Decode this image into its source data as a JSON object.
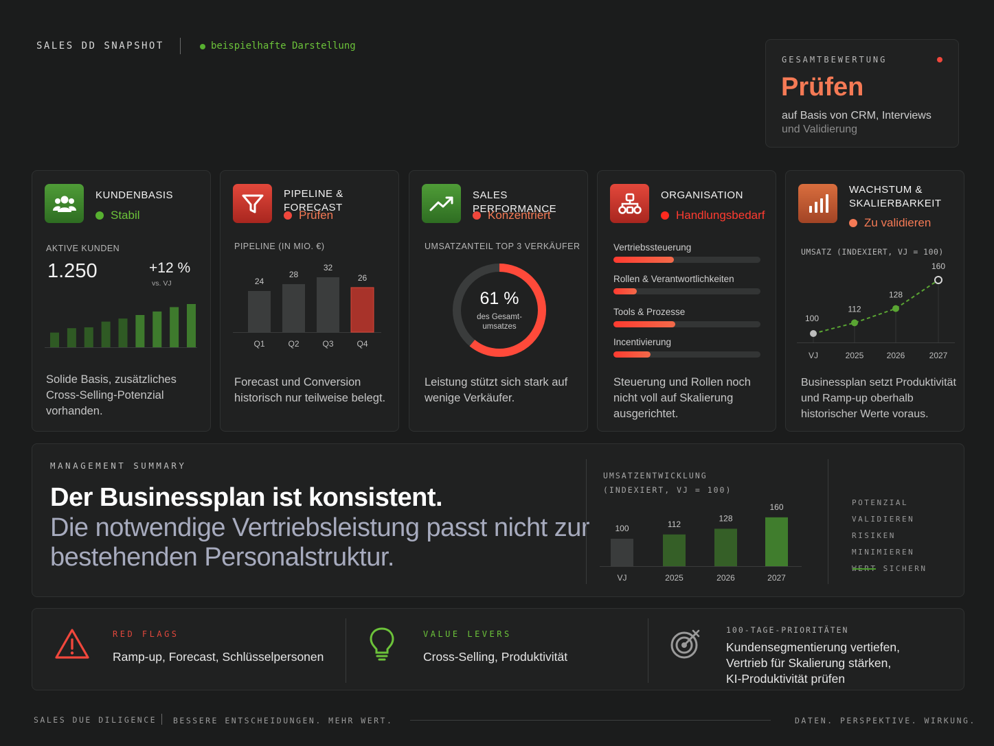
{
  "header": {
    "title": "SALES DD SNAPSHOT",
    "subtitle": "beispielhafte Darstellung"
  },
  "overall": {
    "label": "GESAMTBEWERTUNG",
    "value": "Prüfen",
    "desc_line1": "auf Basis von CRM, Interviews",
    "desc_line2": "und Validierung"
  },
  "colors": {
    "green": "#6cc33a",
    "orange": "#f57a55",
    "red": "#ff3b30",
    "bar_gray": "#3a3c3c",
    "bar_green": "#3f7a2c"
  },
  "cards": {
    "kundenbasis": {
      "icon": "users-icon",
      "title": "KUNDENBASIS",
      "status": "Stabil",
      "metric_label": "AKTIVE KUNDEN",
      "value": "1.250",
      "change": "+12 %",
      "change_note": "vs. VJ",
      "trend": [
        0.35,
        0.45,
        0.47,
        0.6,
        0.67,
        0.75,
        0.83,
        0.93,
        1.0
      ],
      "desc": "Solide Basis, zusätzliches Cross-Selling-Potenzial vorhanden."
    },
    "pipeline": {
      "icon": "funnel-icon",
      "title": "PIPELINE & FORECAST",
      "status": "Prüfen",
      "metric_label": "PIPELINE (IN MIO. €)",
      "bars": [
        {
          "label": "Q1",
          "value": 24
        },
        {
          "label": "Q2",
          "value": 28
        },
        {
          "label": "Q3",
          "value": 32
        },
        {
          "label": "Q4",
          "value": 26
        }
      ],
      "desc": "Forecast und Conversion historisch nur teilweise belegt."
    },
    "performance": {
      "icon": "trend-up-icon",
      "title": "SALES PERFORMANCE",
      "status": "Konzentriert",
      "metric_label": "UMSATZANTEIL TOP 3 VERKÄUFER",
      "donut_value": "61 %",
      "donut_fraction": 0.61,
      "donut_caption1": "des Gesamt-",
      "donut_caption2": "umsatzes",
      "desc": "Leistung stützt sich stark auf wenige Verkäufer."
    },
    "organisation": {
      "icon": "org-chart-icon",
      "title": "ORGANISATION",
      "status": "Handlungsbedarf",
      "items": [
        {
          "label": "Vertriebssteuerung",
          "fraction": 0.41
        },
        {
          "label": "Rollen & Verantwortlichkeiten",
          "fraction": 0.16
        },
        {
          "label": "Tools & Prozesse",
          "fraction": 0.42
        },
        {
          "label": "Incentivierung",
          "fraction": 0.25
        }
      ],
      "desc": "Steuerung und Rollen noch nicht voll auf Skalierung ausgerichtet."
    },
    "wachstum": {
      "icon": "bar-growth-icon",
      "title_line1": "WACHSTUM &",
      "title_line2": "SKALIERBARKEIT",
      "status": "Zu validieren",
      "metric_label": "UMSATZ (INDEXIERT, VJ = 100)",
      "points": [
        {
          "label": "VJ",
          "value": 100
        },
        {
          "label": "2025",
          "value": 112
        },
        {
          "label": "2026",
          "value": 128
        },
        {
          "label": "2027",
          "value": 160
        }
      ],
      "desc": "Businessplan setzt Produktivität und Ramp-up oberhalb historischer Werte voraus."
    }
  },
  "summary": {
    "label": "MANAGEMENT SUMMARY",
    "headline": "Der Businessplan ist konsistent.",
    "subline": "Die notwendige Vertriebsleistung passt nicht zur bestehenden Personalstruktur.",
    "chart_label1": "UMSATZENTWICKLUNG",
    "chart_label2": "(INDEXIERT, VJ = 100)",
    "actions": [
      "POTENZIAL",
      "VALIDIEREN",
      "RISIKEN MINIMIEREN",
      "WERT SICHERN"
    ]
  },
  "chart_data": {
    "type": "bar",
    "categories": [
      "VJ",
      "2025",
      "2026",
      "2027"
    ],
    "values": [
      100,
      112,
      128,
      160
    ],
    "title": "UMSATZENTWICKLUNG",
    "subtitle": "(INDEXIERT, VJ = 100)",
    "ylim": [
      0,
      170
    ]
  },
  "strip": {
    "red_flags_label": "RED FLAGS",
    "red_flags_text": "Ramp-up, Forecast, Schlüsselpersonen",
    "value_levers_label": "VALUE LEVERS",
    "value_levers_text": "Cross-Selling, Produktivität",
    "priorities_label": "100-TAGE-PRIORITÄTEN",
    "priorities_line1": "Kundensegmentierung vertiefen,",
    "priorities_line2": "Vertrieb für Skalierung stärken,",
    "priorities_line3": "KI-Produktivität prüfen"
  },
  "footer": {
    "left1": "SALES DUE DILIGENCE",
    "left2": "BESSERE ENTSCHEIDUNGEN. MEHR WERT.",
    "right": "DATEN. PERSPEKTIVE. WIRKUNG."
  }
}
